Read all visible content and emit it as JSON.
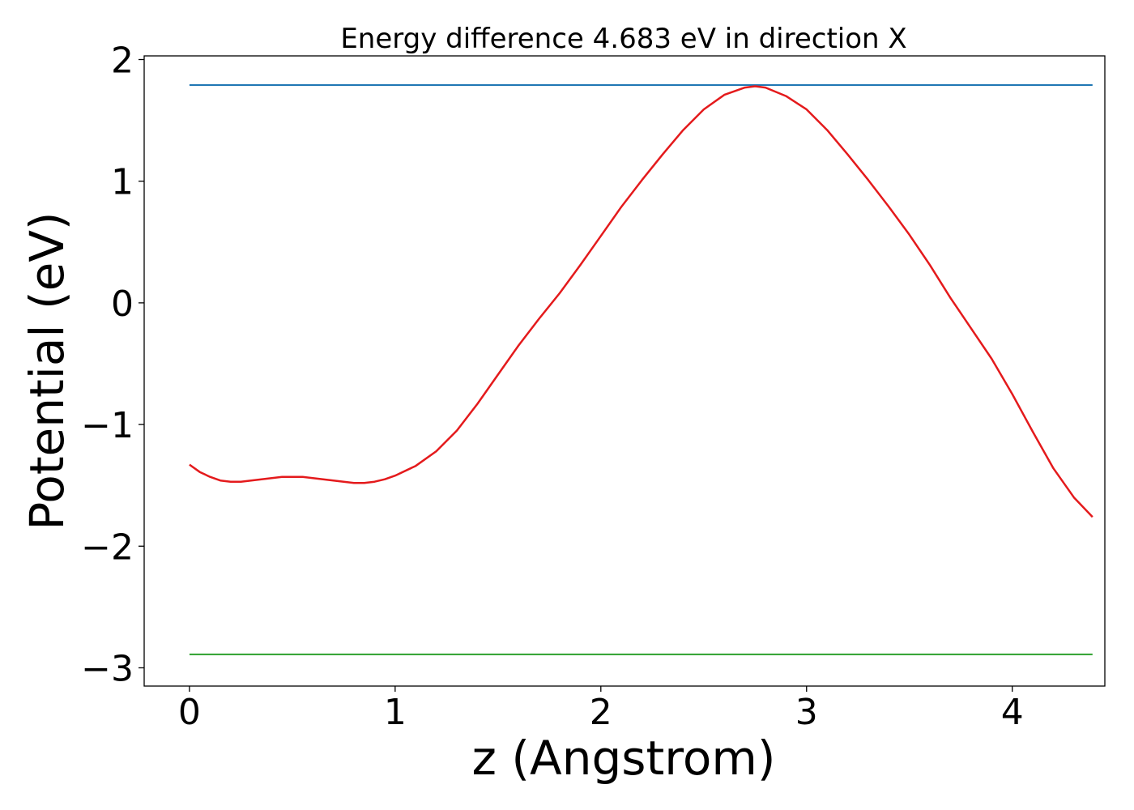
{
  "chart_data": {
    "type": "line",
    "title": "Energy difference 4.683 eV in direction X",
    "xlabel": "z (Angstrom)",
    "ylabel": "Potential (eV)",
    "xlim": [
      -0.22,
      4.45
    ],
    "ylim": [
      -3.15,
      2.03
    ],
    "xticks": [
      0,
      1,
      2,
      3,
      4
    ],
    "yticks": [
      -3,
      -2,
      -1,
      0,
      1,
      2
    ],
    "xtick_labels": [
      "0",
      "1",
      "2",
      "3",
      "4"
    ],
    "ytick_labels": [
      "−3",
      "−2",
      "−1",
      "0",
      "1",
      "2"
    ],
    "grid": false,
    "series": [
      {
        "color": "#1f77b4",
        "x": [
          0,
          4.39
        ],
        "y": [
          1.79,
          1.79
        ]
      },
      {
        "color": "#2ca02c",
        "x": [
          0,
          4.39
        ],
        "y": [
          -2.89,
          -2.89
        ]
      },
      {
        "color": "#e41a1c",
        "x": [
          0.0,
          0.05,
          0.1,
          0.15,
          0.2,
          0.25,
          0.3,
          0.35,
          0.4,
          0.45,
          0.5,
          0.55,
          0.6,
          0.65,
          0.7,
          0.75,
          0.8,
          0.85,
          0.9,
          0.95,
          1.0,
          1.1,
          1.2,
          1.3,
          1.4,
          1.5,
          1.6,
          1.7,
          1.8,
          1.9,
          2.0,
          2.1,
          2.2,
          2.3,
          2.4,
          2.5,
          2.6,
          2.7,
          2.75,
          2.8,
          2.9,
          3.0,
          3.1,
          3.2,
          3.3,
          3.4,
          3.5,
          3.6,
          3.7,
          3.8,
          3.9,
          4.0,
          4.1,
          4.2,
          4.3,
          4.39
        ],
        "y": [
          -1.33,
          -1.39,
          -1.43,
          -1.46,
          -1.47,
          -1.47,
          -1.46,
          -1.45,
          -1.44,
          -1.43,
          -1.43,
          -1.43,
          -1.44,
          -1.45,
          -1.46,
          -1.47,
          -1.48,
          -1.48,
          -1.47,
          -1.45,
          -1.42,
          -1.34,
          -1.22,
          -1.05,
          -0.83,
          -0.59,
          -0.35,
          -0.13,
          0.08,
          0.31,
          0.55,
          0.79,
          1.01,
          1.22,
          1.42,
          1.59,
          1.71,
          1.77,
          1.78,
          1.77,
          1.7,
          1.59,
          1.42,
          1.22,
          1.01,
          0.79,
          0.56,
          0.31,
          0.04,
          -0.21,
          -0.46,
          -0.75,
          -1.06,
          -1.36,
          -1.6,
          -1.76
        ]
      }
    ]
  }
}
